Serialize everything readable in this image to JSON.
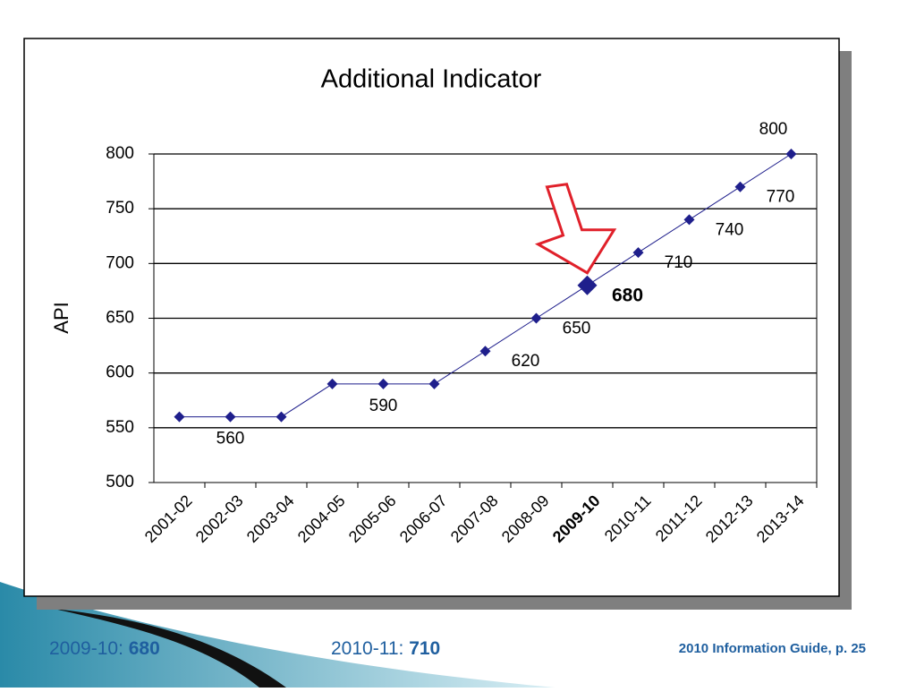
{
  "chart_data": {
    "type": "line",
    "title": "Additional Indicator",
    "y_label": "API",
    "categories": [
      "2001-02",
      "2002-03",
      "2003-04",
      "2004-05",
      "2005-06",
      "2006-07",
      "2007-08",
      "2008-09",
      "2009-10",
      "2010-11",
      "2011-12",
      "2012-13",
      "2013-14"
    ],
    "values": [
      560,
      560,
      560,
      590,
      590,
      590,
      620,
      650,
      680,
      710,
      740,
      770,
      800
    ],
    "value_labels": [
      null,
      "560",
      null,
      null,
      "590",
      null,
      "620",
      "650",
      "680",
      "710",
      "740",
      "770",
      "800"
    ],
    "highlight": "2009-10",
    "color": "#1f1f8c",
    "ylim": [
      500,
      800
    ],
    "yticks": [
      500,
      550,
      600,
      650,
      700,
      750,
      800
    ],
    "grid": true
  },
  "footer": {
    "items": [
      {
        "label": "2009-10:",
        "value": "680"
      },
      {
        "label": "2010-11:",
        "value": "710"
      }
    ],
    "source": "2010 Information Guide, p. 25"
  }
}
